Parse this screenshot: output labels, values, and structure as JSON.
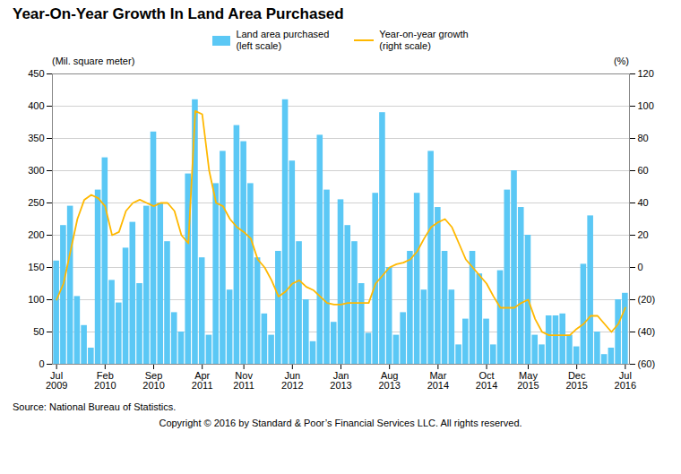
{
  "chart_data": {
    "type": "bar",
    "title": "Year-On-Year Growth In Land Area Purchased",
    "ylabel": "(Mil. square meter)",
    "y2label": "(%)",
    "annotations": [
      "Source: National Bureau of Statistics.",
      "Copyright © 2016 by Standard & Poor’s Financial Services LLC. All rights reserved."
    ],
    "categories": [
      "Jul\n2009",
      null,
      null,
      null,
      null,
      null,
      null,
      "Feb\n2010",
      null,
      null,
      null,
      null,
      null,
      null,
      "Sep\n2010",
      null,
      null,
      null,
      null,
      null,
      null,
      "Apr\n2011",
      null,
      null,
      null,
      null,
      null,
      "Nov\n2011",
      null,
      null,
      null,
      null,
      null,
      null,
      "Jun\n2012",
      null,
      null,
      null,
      null,
      null,
      null,
      "Jan\n2013",
      null,
      null,
      null,
      null,
      null,
      null,
      "Aug\n2013",
      null,
      null,
      null,
      null,
      null,
      null,
      "Mar\n2014",
      null,
      null,
      null,
      null,
      null,
      null,
      "Oct\n2014",
      null,
      null,
      null,
      null,
      null,
      "May\n2015",
      null,
      null,
      null,
      null,
      null,
      null,
      "Dec\n2015",
      null,
      null,
      null,
      null,
      null,
      null,
      "Jul\n2016"
    ],
    "series": [
      {
        "name": "Land area purchased\n(left scale)",
        "type": "bar",
        "color": "#5BC8F5",
        "values": [
          160,
          215,
          245,
          105,
          60,
          25,
          270,
          320,
          130,
          95,
          180,
          220,
          125,
          245,
          360,
          250,
          190,
          80,
          50,
          295,
          410,
          165,
          45,
          280,
          330,
          115,
          370,
          345,
          280,
          165,
          78,
          45,
          175,
          410,
          315,
          190,
          100,
          35,
          355,
          270,
          65,
          255,
          215,
          190,
          125,
          48,
          265,
          390,
          150,
          45,
          80,
          175,
          265,
          115,
          330,
          243,
          175,
          115,
          30,
          70,
          175,
          140,
          70,
          30,
          145,
          270,
          300,
          243,
          200,
          45,
          30,
          75,
          75,
          78,
          45,
          27,
          155,
          230,
          50,
          15,
          25,
          100,
          110
        ]
      },
      {
        "name": "Year-on-year growth\n(right scale)",
        "type": "line",
        "color": "#FFB800",
        "axis": "y2",
        "values": [
          -20,
          -10,
          10,
          30,
          42,
          45,
          43,
          38,
          20,
          22,
          35,
          40,
          42,
          40,
          38,
          40,
          40,
          35,
          20,
          15,
          97,
          95,
          60,
          40,
          38,
          30,
          25,
          22,
          18,
          5,
          0,
          -8,
          -18,
          -15,
          -10,
          -8,
          -12,
          -14,
          -18,
          -22,
          -23,
          -23,
          -22,
          -22,
          -22,
          -22,
          -10,
          -5,
          0,
          2,
          3,
          5,
          10,
          18,
          25,
          28,
          30,
          25,
          15,
          5,
          0,
          -5,
          -10,
          -18,
          -25,
          -25,
          -25,
          -22,
          -20,
          -32,
          -40,
          -42,
          -42,
          -42,
          -42,
          -38,
          -35,
          -30,
          -30,
          -35,
          -40,
          -35,
          -25
        ]
      }
    ],
    "ylim": [
      0,
      450
    ],
    "yticks": [
      0,
      50,
      100,
      150,
      200,
      250,
      300,
      350,
      400,
      450
    ],
    "y2lim": [
      -60,
      120
    ],
    "y2ticks": [
      {
        "value": -60,
        "label": "(60)"
      },
      {
        "value": -40,
        "label": "(40)"
      },
      {
        "value": -20,
        "label": "(20)"
      },
      0,
      20,
      40,
      60,
      80,
      100,
      120
    ],
    "grid": true,
    "legend": "top"
  }
}
